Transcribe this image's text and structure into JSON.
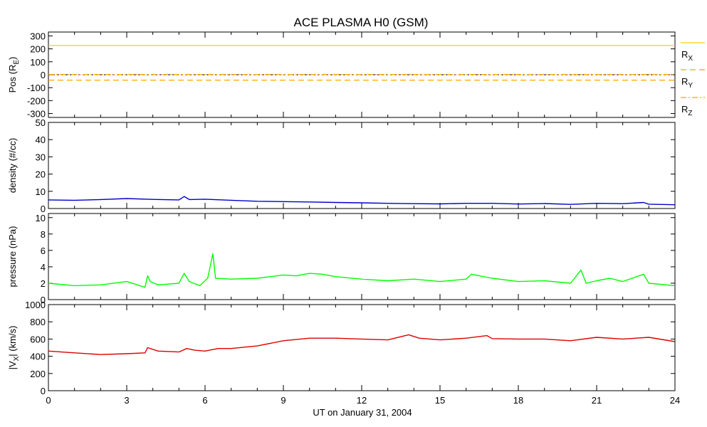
{
  "title": "ACE PLASMA H0 (GSM)",
  "xlabel": "UT on January 31, 2004",
  "x_ticks": [
    "0",
    "3",
    "6",
    "9",
    "12",
    "15",
    "18",
    "21",
    "24"
  ],
  "colors": {
    "rx": "#ffd000",
    "ry": "#ffa500",
    "rz": "#ffa500",
    "density": "#0000cc",
    "pressure": "#00ff00",
    "vx": "#dd0000"
  },
  "chart_data": [
    {
      "type": "line",
      "ylabel": "Pos (R",
      "ylabel_sub": "E",
      "ylabel_tail": ")",
      "ylim": [
        -330,
        330
      ],
      "y_ticks": [
        "300",
        "200",
        "100",
        "0",
        "-100",
        "-200",
        "-300"
      ],
      "xlim": [
        0,
        24
      ],
      "zero_line": true,
      "legend_placement": "right",
      "series": [
        {
          "name": "R",
          "sub": "X",
          "style": "solid",
          "x": [
            0,
            24
          ],
          "y": [
            226,
            226
          ]
        },
        {
          "name": "R",
          "sub": "Y",
          "style": "dashed",
          "x": [
            0,
            24
          ],
          "y": [
            -42,
            -42
          ]
        },
        {
          "name": "R",
          "sub": "Z",
          "style": "dashdot",
          "x": [
            0,
            24
          ],
          "y": [
            2,
            2
          ]
        }
      ]
    },
    {
      "type": "line",
      "ylabel": "density (#/cc)",
      "ylim": [
        0,
        50
      ],
      "y_ticks": [
        "50",
        "40",
        "30",
        "20",
        "10",
        "0"
      ],
      "xlim": [
        0,
        24
      ],
      "series": [
        {
          "name": "",
          "x": [
            0,
            1,
            2,
            3,
            4,
            5,
            5.2,
            5.4,
            6,
            7,
            8,
            9,
            10,
            11,
            12,
            13,
            14,
            15,
            16,
            17,
            18,
            19,
            20,
            21,
            22,
            22.8,
            23,
            24
          ],
          "y": [
            5,
            4.8,
            5.2,
            5.8,
            5.3,
            5,
            7,
            5.2,
            5.4,
            4.8,
            4.2,
            4,
            3.8,
            3.5,
            3.3,
            3,
            2.8,
            2.7,
            3,
            3,
            2.6,
            2.9,
            2.4,
            3,
            2.8,
            3.5,
            2.5,
            2.2
          ]
        }
      ]
    },
    {
      "type": "line",
      "ylabel": "pressure (nPa)",
      "ylim": [
        0,
        10.5
      ],
      "y_ticks": [
        "10",
        "8",
        "6",
        "4",
        "2",
        "0"
      ],
      "xlim": [
        0,
        24
      ],
      "series": [
        {
          "name": "",
          "x": [
            0,
            1,
            2,
            3,
            3.7,
            3.8,
            3.9,
            4.2,
            5,
            5.2,
            5.4,
            5.8,
            6.1,
            6.3,
            6.4,
            7,
            8,
            9,
            9.5,
            10,
            10.5,
            11,
            12,
            13,
            14,
            15,
            16,
            16.2,
            17,
            18,
            19,
            20,
            20.4,
            20.6,
            21,
            21.5,
            22,
            22.8,
            23,
            24
          ],
          "y": [
            2,
            1.7,
            1.8,
            2.2,
            1.5,
            2.9,
            2.2,
            1.8,
            2,
            3.2,
            2.2,
            1.7,
            2.6,
            5.6,
            2.6,
            2.5,
            2.6,
            3,
            2.9,
            3.2,
            3.1,
            2.8,
            2.5,
            2.3,
            2.5,
            2.2,
            2.5,
            3.1,
            2.6,
            2.2,
            2.3,
            2,
            3.6,
            2,
            2.3,
            2.6,
            2.2,
            3.1,
            2,
            1.7
          ]
        }
      ]
    },
    {
      "type": "line",
      "ylabel": "|V",
      "ylabel_sub": "X",
      "ylabel_tail": "| (km/s)",
      "ylim": [
        0,
        1000
      ],
      "y_ticks": [
        "1000",
        "800",
        "600",
        "400",
        "200",
        "0"
      ],
      "xlim": [
        0,
        24
      ],
      "series": [
        {
          "name": "",
          "x": [
            0,
            1,
            2,
            3,
            3.7,
            3.8,
            4.2,
            5,
            5.3,
            5.6,
            6,
            6.5,
            7,
            8,
            9,
            10,
            11,
            12,
            13,
            13.8,
            14.2,
            15,
            16,
            16.8,
            17,
            18,
            19,
            20,
            21,
            22,
            23,
            24
          ],
          "y": [
            460,
            440,
            420,
            430,
            440,
            500,
            460,
            450,
            490,
            470,
            460,
            490,
            490,
            520,
            580,
            610,
            610,
            600,
            590,
            650,
            610,
            590,
            610,
            640,
            605,
            600,
            600,
            580,
            620,
            600,
            620,
            570
          ]
        }
      ]
    }
  ]
}
